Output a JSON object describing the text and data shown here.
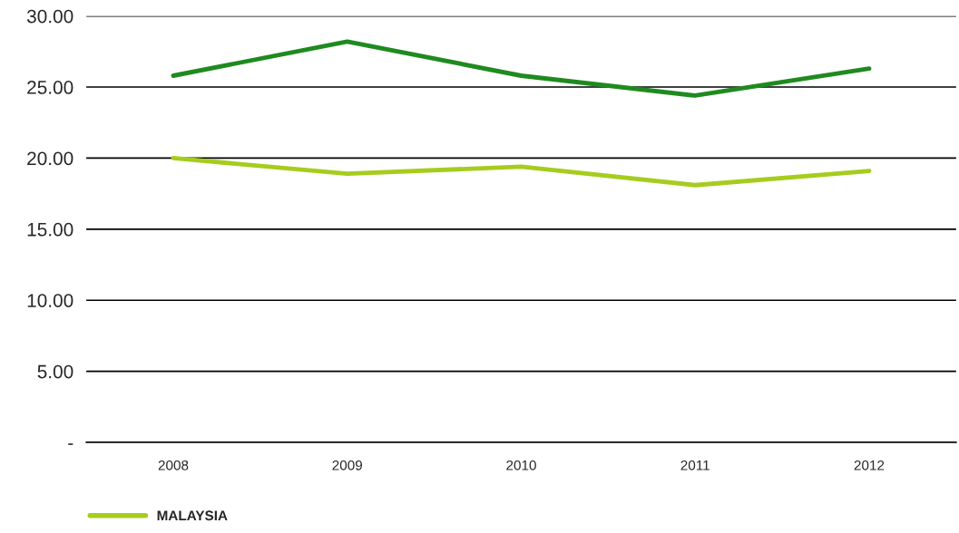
{
  "chart_data": {
    "type": "line",
    "categories": [
      "2008",
      "2009",
      "2010",
      "2011",
      "2012"
    ],
    "series": [
      {
        "color": "#1f8a1f",
        "values": [
          25.8,
          28.2,
          25.8,
          24.4,
          26.3
        ]
      },
      {
        "name": "MALAYSIA",
        "color": "#a6cc1e",
        "values": [
          20.0,
          18.9,
          19.4,
          18.1,
          19.1
        ]
      }
    ],
    "ylim": [
      0,
      30
    ],
    "yticks": [
      {
        "value": 0,
        "label": "-"
      },
      {
        "value": 5,
        "label": "5.00"
      },
      {
        "value": 10,
        "label": "10.00"
      },
      {
        "value": 15,
        "label": "15.00"
      },
      {
        "value": 20,
        "label": "20.00"
      },
      {
        "value": 25,
        "label": "25.00"
      },
      {
        "value": 30,
        "label": "30.00"
      }
    ],
    "grid": "y",
    "legend": "bottom left",
    "marker": "none",
    "line_style": "solid"
  }
}
